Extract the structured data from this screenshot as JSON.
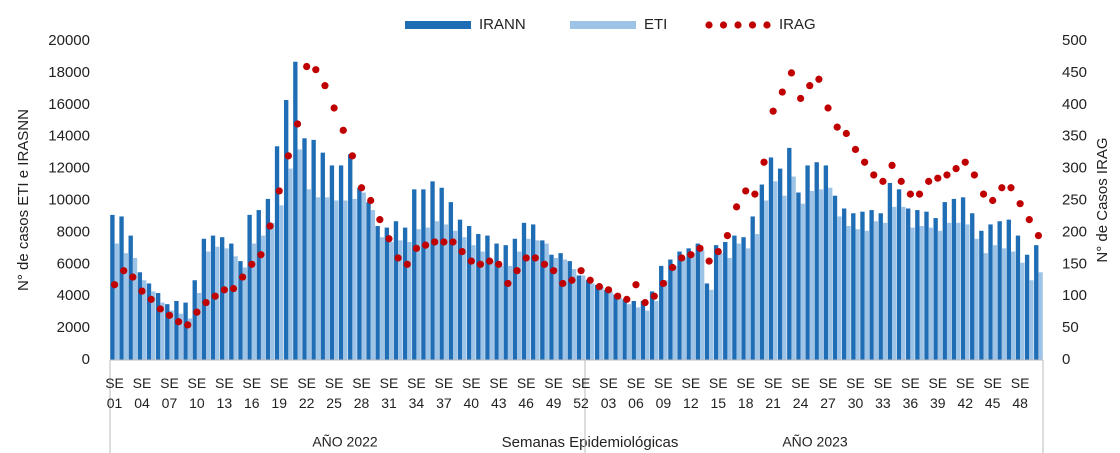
{
  "chart_data": {
    "type": "bar-line",
    "x_title": "Semanas Epidemiológicas",
    "y_title": "N° de casos ETI e IRASNN",
    "y2_title": "N° de Casos IRAG",
    "group_labels": [
      "AÑO 2022",
      "AÑO 2023"
    ],
    "legend": "top",
    "categories": [
      "SE 01",
      null,
      null,
      "SE 04",
      null,
      null,
      "SE 07",
      null,
      null,
      "SE 10",
      null,
      null,
      "SE 13",
      null,
      null,
      "SE 16",
      null,
      null,
      "SE 19",
      null,
      null,
      "SE 22",
      null,
      null,
      "SE 25",
      null,
      null,
      "SE 28",
      null,
      null,
      "SE 31",
      null,
      null,
      "SE 34",
      null,
      null,
      "SE 37",
      null,
      null,
      "SE 40",
      null,
      null,
      "SE 43",
      null,
      null,
      "SE 46",
      null,
      null,
      "SE 49",
      null,
      null,
      "SE 52",
      null,
      null,
      "SE 03",
      null,
      null,
      "SE 06",
      null,
      null,
      "SE 09",
      null,
      null,
      "SE 12",
      null,
      null,
      "SE 15",
      null,
      null,
      "SE 18",
      null,
      null,
      "SE 21",
      null,
      null,
      "SE 24",
      null,
      null,
      "SE 27",
      null,
      null,
      "SE 30",
      null,
      null,
      "SE 33",
      null,
      null,
      "SE 36",
      null,
      null,
      "SE 39",
      null,
      null,
      "SE 42",
      null,
      null,
      "SE 45",
      null,
      null,
      "SE 48",
      null,
      null
    ],
    "series": [
      {
        "name": "IRANN",
        "kind": "bar",
        "color": "#1f6db5",
        "values": [
          9100,
          9000,
          7800,
          5500,
          4800,
          4200,
          3500,
          3700,
          3600,
          5000,
          7600,
          7800,
          7700,
          7300,
          6200,
          9100,
          9400,
          10100,
          13400,
          16300,
          18700,
          13900,
          13800,
          13000,
          12200,
          12200,
          12900,
          10800,
          9900,
          8400,
          8300,
          8700,
          8300,
          10700,
          10700,
          11200,
          10800,
          9900,
          8800,
          8400,
          7900,
          7800,
          7300,
          7200,
          7600,
          8600,
          8500,
          7500,
          6600,
          6700,
          6200,
          5300,
          5000,
          4700,
          4400,
          4100,
          3800,
          3700,
          3700,
          4300,
          5900,
          6300,
          6800,
          7000,
          7300,
          4800,
          7200,
          7400,
          7800,
          7700,
          9000,
          11000,
          12700,
          12000,
          13300,
          10500,
          12200,
          12400,
          12200,
          10300,
          9500,
          9200,
          9300,
          9400,
          9200,
          11100,
          10700,
          9500,
          9400,
          9300,
          8900,
          9900,
          10100,
          10200,
          9200,
          8100,
          8500,
          8700,
          8800,
          7800,
          6600,
          7200
        ]
      },
      {
        "name": "ETI",
        "kind": "bar",
        "color": "#9dc3e6",
        "values": [
          7300,
          6700,
          6400,
          5000,
          4300,
          3600,
          3100,
          2900,
          2600,
          4200,
          6800,
          7100,
          7000,
          6500,
          5800,
          7300,
          7800,
          8600,
          9700,
          12000,
          13200,
          10700,
          10200,
          10200,
          10000,
          10000,
          10100,
          10500,
          9400,
          7700,
          7400,
          7500,
          7400,
          8200,
          8300,
          8700,
          8500,
          8100,
          7700,
          7200,
          6800,
          6200,
          5900,
          5900,
          6800,
          7600,
          7500,
          7300,
          6400,
          6300,
          5700,
          5300,
          4800,
          4600,
          4300,
          3900,
          3500,
          3300,
          3100,
          3700,
          5000,
          5900,
          6400,
          6700,
          6900,
          4400,
          6700,
          6400,
          7300,
          7000,
          7900,
          10000,
          11200,
          10300,
          11500,
          9800,
          10600,
          10700,
          10800,
          9000,
          8400,
          8200,
          8100,
          8700,
          8600,
          9600,
          9600,
          8300,
          8400,
          8300,
          8100,
          8600,
          8600,
          8500,
          7600,
          6700,
          7200,
          7000,
          6800,
          6100,
          5000,
          5500
        ]
      },
      {
        "name": "IRAG",
        "kind": "dots",
        "axis": "y2",
        "color": "#c00000",
        "values": [
          118,
          140,
          130,
          108,
          95,
          80,
          70,
          60,
          55,
          75,
          90,
          100,
          110,
          112,
          130,
          150,
          165,
          210,
          265,
          320,
          370,
          460,
          455,
          430,
          395,
          360,
          320,
          270,
          250,
          220,
          190,
          160,
          150,
          175,
          180,
          185,
          185,
          185,
          170,
          155,
          150,
          155,
          150,
          120,
          140,
          160,
          160,
          150,
          140,
          120,
          125,
          140,
          125,
          115,
          110,
          100,
          95,
          118,
          90,
          100,
          120,
          145,
          160,
          165,
          175,
          155,
          170,
          195,
          240,
          265,
          260,
          310,
          390,
          420,
          450,
          410,
          430,
          440,
          395,
          365,
          355,
          330,
          310,
          290,
          280,
          305,
          280,
          260,
          260,
          280,
          285,
          290,
          300,
          310,
          290,
          260,
          250,
          270,
          270,
          245,
          220,
          195
        ]
      }
    ],
    "ylim": [
      0,
      20000
    ],
    "yticks": [
      0,
      2000,
      4000,
      6000,
      8000,
      10000,
      12000,
      14000,
      16000,
      18000,
      20000
    ],
    "y2lim": [
      0,
      500
    ],
    "y2ticks": [
      0,
      50,
      100,
      150,
      200,
      250,
      300,
      350,
      400,
      450,
      500
    ]
  }
}
